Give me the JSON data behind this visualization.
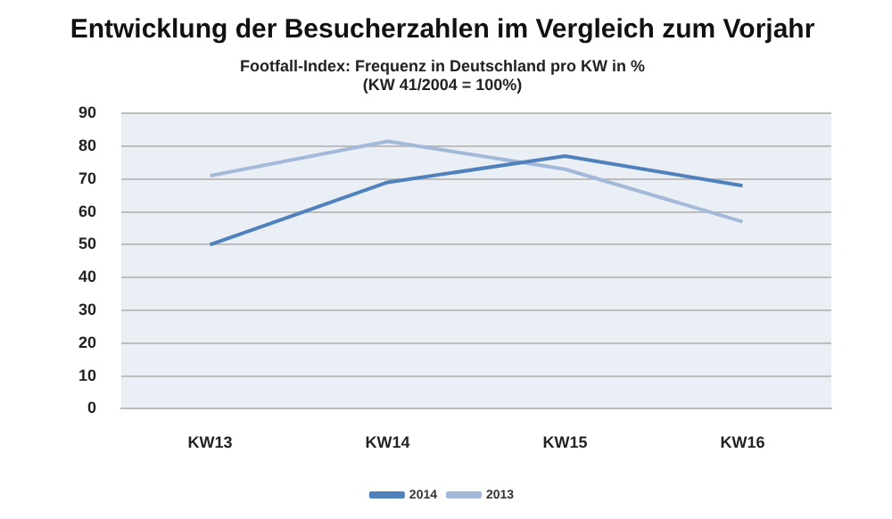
{
  "chart_data": {
    "type": "line",
    "title": "Entwicklung der Besucherzahlen im Vergleich zum Vorjahr",
    "subtitle": "Footfall-Index: Frequenz in Deutschland pro KW in %\n(KW 41/2004 = 100%)",
    "categories": [
      "KW13",
      "KW14",
      "KW15",
      "KW16"
    ],
    "series": [
      {
        "name": "2014",
        "color": "#4f81bd",
        "values": [
          50,
          69,
          77,
          68
        ]
      },
      {
        "name": "2013",
        "color": "#a3b9d9",
        "values": [
          71,
          81.5,
          73,
          57
        ]
      }
    ],
    "ylim": [
      0,
      90
    ],
    "yticks": [
      0,
      10,
      20,
      30,
      40,
      50,
      60,
      70,
      80,
      90
    ],
    "grid": "y",
    "legend": "bottom",
    "marker": "none",
    "line_style": "solid"
  }
}
